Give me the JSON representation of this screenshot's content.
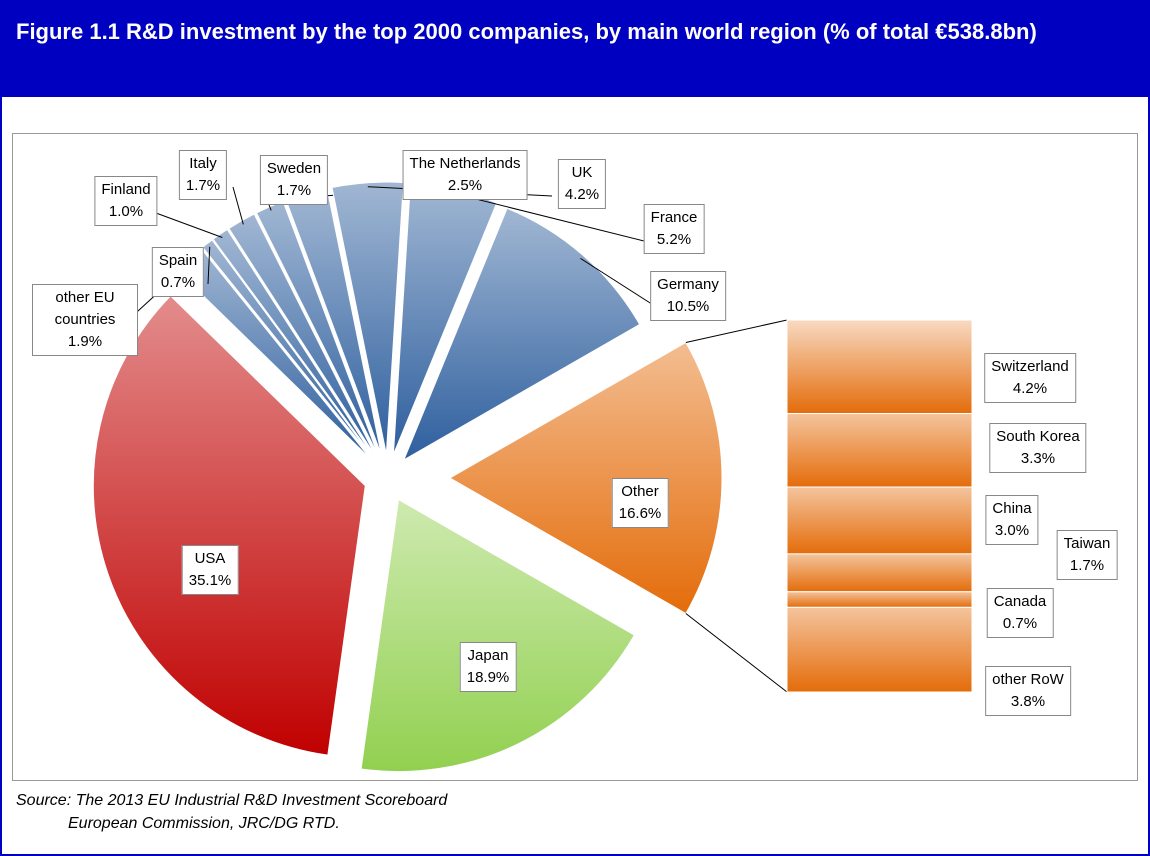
{
  "chart_data": {
    "type": "pie-of-bar",
    "title": "Figure 1.1  R&D investment by the top 2000 companies, by main world region (% of total €538.8bn)",
    "categories": [
      "Other",
      "Japan",
      "USA",
      "other EU countries",
      "Spain",
      "Finland",
      "Italy",
      "Sweden",
      "The Netherlands",
      "UK",
      "France",
      "Germany"
    ],
    "values": [
      16.6,
      18.9,
      35.1,
      1.9,
      0.7,
      1.0,
      1.7,
      1.7,
      2.5,
      4.2,
      5.2,
      10.5
    ],
    "value_labels": [
      "16.6%",
      "18.9%",
      "35.1%",
      "1.9%",
      "0.7%",
      "1.0%",
      "1.7%",
      "1.7%",
      "2.5%",
      "4.2%",
      "5.2%",
      "10.5%"
    ],
    "colors": [
      "#e46c0a",
      "#92d050",
      "#c00000",
      "#2e5f9e",
      "#2e5f9e",
      "#2e5f9e",
      "#2e5f9e",
      "#2e5f9e",
      "#2e5f9e",
      "#2e5f9e",
      "#2e5f9e",
      "#2e5f9e"
    ],
    "breakdown": {
      "categories": [
        "Switzerland",
        "South Korea",
        "China",
        "Taiwan",
        "Canada",
        "other RoW"
      ],
      "values": [
        4.2,
        3.3,
        3.0,
        1.7,
        0.7,
        3.8
      ],
      "value_labels": [
        "4.2%",
        "3.3%",
        "3.0%",
        "1.7%",
        "0.7%",
        "3.8%"
      ],
      "color": "#e46c0a"
    }
  },
  "source": [
    "Source: The 2013 EU Industrial R&D Investment Scoreboard",
    "European Commission, JRC/DG RTD."
  ]
}
